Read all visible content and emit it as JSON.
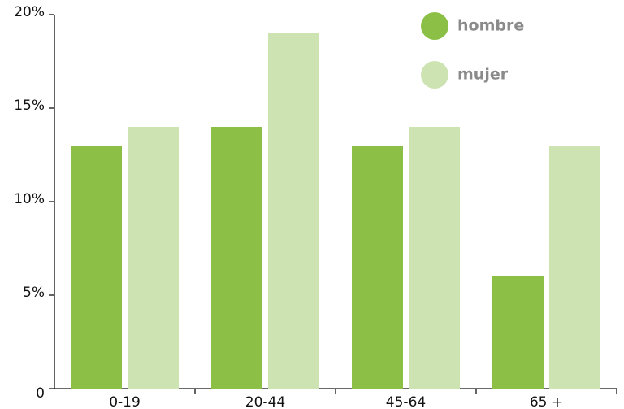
{
  "chart_data": {
    "type": "bar",
    "categories": [
      "0-19",
      "20-44",
      "45-64",
      "65 +"
    ],
    "series": [
      {
        "name": "hombre",
        "color": "#8bbf45",
        "values": [
          13,
          14,
          13,
          6
        ]
      },
      {
        "name": "mujer",
        "color": "#cde3b2",
        "values": [
          14,
          19,
          14,
          13
        ]
      }
    ],
    "ylim": [
      0,
      20
    ],
    "yticks": [
      0,
      {
        "value": 5,
        "label": "5%"
      },
      {
        "value": 10,
        "label": "10%"
      },
      {
        "value": 15,
        "label": "15%"
      },
      {
        "value": 20,
        "label": "20%"
      }
    ],
    "legend": "top-right",
    "grid": false
  }
}
